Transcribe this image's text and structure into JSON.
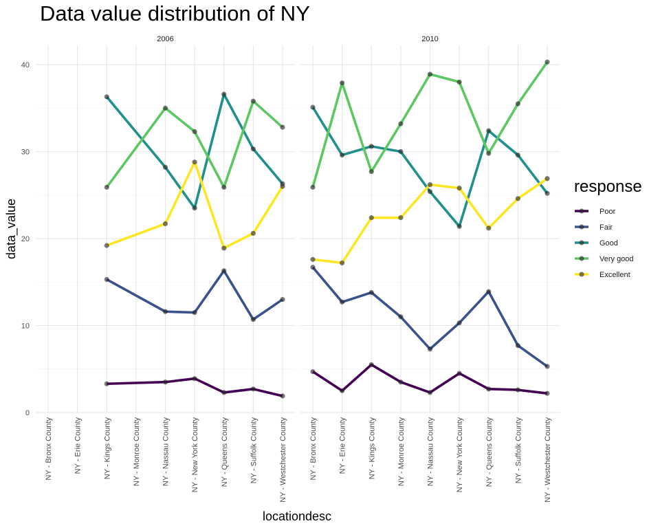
{
  "chart_data": {
    "type": "line",
    "title": "Data value distribution of NY",
    "xlabel": "locationdesc",
    "ylabel": "data_value",
    "ylim": [
      0,
      42
    ],
    "yticks": [
      0,
      10,
      20,
      30,
      40
    ],
    "grid": true,
    "legend_title": "response",
    "legend_position": "right",
    "categories": [
      "NY - Bronx County",
      "NY - Erie County",
      "NY - Kings County",
      "NY - Monroe County",
      "NY - Nassau County",
      "NY - New York County",
      "NY - Queens County",
      "NY - Suffolk County",
      "NY - Westchester County"
    ],
    "series_order": [
      {
        "name": "Poor",
        "color": "#440154"
      },
      {
        "name": "Fair",
        "color": "#3B528B"
      },
      {
        "name": "Good",
        "color": "#21908C"
      },
      {
        "name": "Very good",
        "color": "#5DC863"
      },
      {
        "name": "Excellent",
        "color": "#FDE725"
      }
    ],
    "facets": [
      {
        "label": "2006",
        "series": [
          {
            "name": "Poor",
            "values": [
              null,
              null,
              3.3,
              null,
              3.5,
              3.9,
              2.3,
              2.7,
              1.9
            ]
          },
          {
            "name": "Fair",
            "values": [
              null,
              null,
              15.3,
              null,
              11.6,
              11.5,
              16.3,
              10.7,
              13.0
            ]
          },
          {
            "name": "Good",
            "values": [
              null,
              null,
              36.3,
              null,
              28.2,
              23.5,
              36.6,
              30.3,
              26.3
            ]
          },
          {
            "name": "Very good",
            "values": [
              null,
              null,
              25.9,
              null,
              35.0,
              32.3,
              25.9,
              35.8,
              32.8
            ]
          },
          {
            "name": "Excellent",
            "values": [
              null,
              null,
              19.2,
              null,
              21.7,
              28.8,
              18.9,
              20.6,
              26.0
            ]
          }
        ]
      },
      {
        "label": "2010",
        "series": [
          {
            "name": "Poor",
            "values": [
              4.7,
              2.5,
              5.5,
              3.5,
              2.3,
              4.5,
              2.7,
              2.6,
              2.2
            ]
          },
          {
            "name": "Fair",
            "values": [
              16.7,
              12.7,
              13.8,
              11.0,
              7.3,
              10.3,
              13.9,
              7.7,
              5.3
            ]
          },
          {
            "name": "Good",
            "values": [
              35.1,
              29.6,
              30.6,
              30.0,
              25.4,
              21.4,
              32.4,
              29.6,
              25.2
            ]
          },
          {
            "name": "Very good",
            "values": [
              25.9,
              37.9,
              27.7,
              33.2,
              38.9,
              38.0,
              29.8,
              35.5,
              40.3
            ]
          },
          {
            "name": "Excellent",
            "values": [
              17.6,
              17.2,
              22.4,
              22.4,
              26.2,
              25.8,
              21.2,
              24.6,
              26.9
            ]
          }
        ]
      }
    ]
  }
}
